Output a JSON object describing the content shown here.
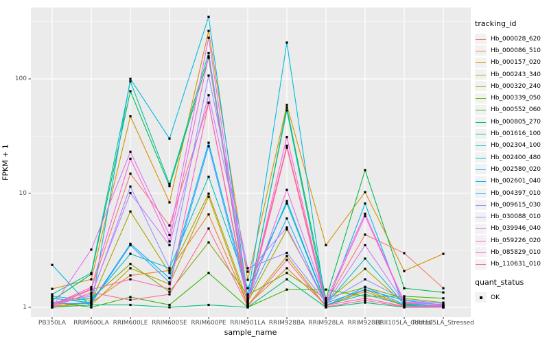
{
  "figure": {
    "background": "#ffffff",
    "panel_background": "#ebebeb",
    "grid_color": "#ffffff",
    "tick_color": "#333333",
    "axis_text_color": "#4d4d4d",
    "point_color": "#000000"
  },
  "legend": {
    "tracking_title": "tracking_id",
    "quant_title": "quant_status",
    "quant_items": [
      {
        "label": "OK",
        "marker": "black-square-icon"
      }
    ]
  },
  "chart_data": {
    "type": "line",
    "title": "",
    "xlabel": "sample_name",
    "ylabel": "FPKM + 1",
    "y_scale": "log10",
    "y_ticks": [
      1,
      10,
      100
    ],
    "y_minor_breaks": [
      3.162,
      31.62,
      316.2
    ],
    "ylim": [
      1,
      420
    ],
    "grid": true,
    "legend_position": "right",
    "point_marker": "black-square",
    "categories": [
      "PB350LA",
      "RRIM600LA",
      "RRIM600LE",
      "RRIM600SE",
      "RRIM600PE",
      "RRIM901LA",
      "RRIM928BA",
      "RRIM928LA",
      "RRIM928LE",
      "RRII105LA_Control",
      "RRII105LA_Stressed"
    ],
    "series": [
      {
        "name": "Hb_000028_620",
        "color": "#F8766D",
        "values": [
          1.05,
          1.45,
          14.8,
          5.2,
          62,
          1.15,
          26,
          1.1,
          4.33,
          2.98,
          1.47
        ]
      },
      {
        "name": "Hb_000086_510",
        "color": "#EA8331",
        "values": [
          1.0,
          1.1,
          1.9,
          2.1,
          6.5,
          1.05,
          2.2,
          1.05,
          1.37,
          1.03,
          1.0
        ]
      },
      {
        "name": "Hb_000157_020",
        "color": "#D89000",
        "values": [
          1.45,
          1.76,
          47,
          8.3,
          263,
          1.74,
          59,
          3.5,
          10.2,
          2.08,
          2.94
        ]
      },
      {
        "name": "Hb_000243_340",
        "color": "#C09B00",
        "values": [
          1.0,
          1.05,
          2.2,
          1.6,
          9.3,
          1.04,
          2.8,
          1.02,
          1.43,
          1.04,
          1.01
        ]
      },
      {
        "name": "Hb_000320_240",
        "color": "#A3A500",
        "values": [
          1.02,
          1.12,
          6.9,
          2.0,
          9.9,
          1.12,
          4.8,
          1.12,
          2.17,
          1.08,
          1.03
        ]
      },
      {
        "name": "Hb_000339_050",
        "color": "#7CAE00",
        "values": [
          1.1,
          1.2,
          2.4,
          1.37,
          3.7,
          1.28,
          2.0,
          1.2,
          1.5,
          1.2,
          1.1
        ]
      },
      {
        "name": "Hb_000552_060",
        "color": "#39B600",
        "values": [
          1.12,
          1.0,
          1.23,
          1.05,
          2.0,
          1.0,
          1.43,
          1.43,
          1.25,
          1.25,
          1.2
        ]
      },
      {
        "name": "Hb_000805_270",
        "color": "#00BB4E",
        "values": [
          1.15,
          1.95,
          78,
          11.5,
          153,
          1.05,
          56,
          1.18,
          15.9,
          1.47,
          1.35
        ]
      },
      {
        "name": "Hb_001616_100",
        "color": "#00BF7D",
        "values": [
          1.0,
          1.05,
          1.05,
          1.0,
          1.05,
          1.0,
          1.76,
          1.0,
          1.1,
          1.0,
          1.0
        ]
      },
      {
        "name": "Hb_002304_100",
        "color": "#00C1A3",
        "values": [
          1.3,
          2.0,
          95,
          12,
          168,
          1.1,
          53,
          1.05,
          1.3,
          1.05,
          1.0
        ]
      },
      {
        "name": "Hb_002400_480",
        "color": "#00BFC4",
        "values": [
          1.25,
          1.15,
          2.94,
          2.2,
          13.9,
          1.47,
          8.1,
          1.07,
          2.67,
          1.07,
          1.02
        ]
      },
      {
        "name": "Hb_002580_020",
        "color": "#00BAE0",
        "values": [
          2.35,
          1.0,
          100,
          30,
          350,
          1.22,
          208,
          1.0,
          8.1,
          1.0,
          1.0
        ]
      },
      {
        "name": "Hb_002601_040",
        "color": "#00B0F6",
        "values": [
          1.2,
          1.1,
          3.6,
          1.8,
          27.6,
          1.3,
          8.5,
          1.09,
          1.43,
          1.15,
          1.05
        ]
      },
      {
        "name": "Hb_004397_010",
        "color": "#35A2FF",
        "values": [
          1.08,
          1.08,
          3.5,
          1.65,
          25.8,
          1.18,
          6.0,
          1.03,
          1.51,
          1.06,
          1.04
        ]
      },
      {
        "name": "Hb_009615_030",
        "color": "#9590FF",
        "values": [
          1.1,
          1.25,
          11.4,
          2.2,
          107,
          2.2,
          3.0,
          1.1,
          1.76,
          1.17,
          1.08
        ]
      },
      {
        "name": "Hb_030088_010",
        "color": "#C77CFF",
        "values": [
          1.05,
          1.3,
          10,
          3.5,
          72,
          2.05,
          5.0,
          1.06,
          3.5,
          1.1,
          1.06
        ]
      },
      {
        "name": "Hb_039946_040",
        "color": "#E76BF3",
        "values": [
          1.0,
          3.2,
          23,
          4.3,
          229,
          1.15,
          10.7,
          1.15,
          6.6,
          1.12,
          1.05
        ]
      },
      {
        "name": "Hb_059226_020",
        "color": "#FA62DB",
        "values": [
          1.05,
          1.5,
          20,
          3.78,
          158,
          1.1,
          31,
          1.08,
          6.3,
          1.1,
          1.02
        ]
      },
      {
        "name": "Hb_085829_010",
        "color": "#FF62BC",
        "values": [
          1.02,
          1.43,
          1.76,
          1.45,
          61.7,
          1.08,
          25,
          1.04,
          1.2,
          1.02,
          1.01
        ]
      },
      {
        "name": "Hb_110631_010",
        "color": "#FF6A98",
        "values": [
          1.0,
          1.35,
          1.16,
          1.3,
          4.9,
          1.02,
          2.6,
          1.01,
          1.15,
          1.01,
          1.0
        ]
      }
    ]
  }
}
